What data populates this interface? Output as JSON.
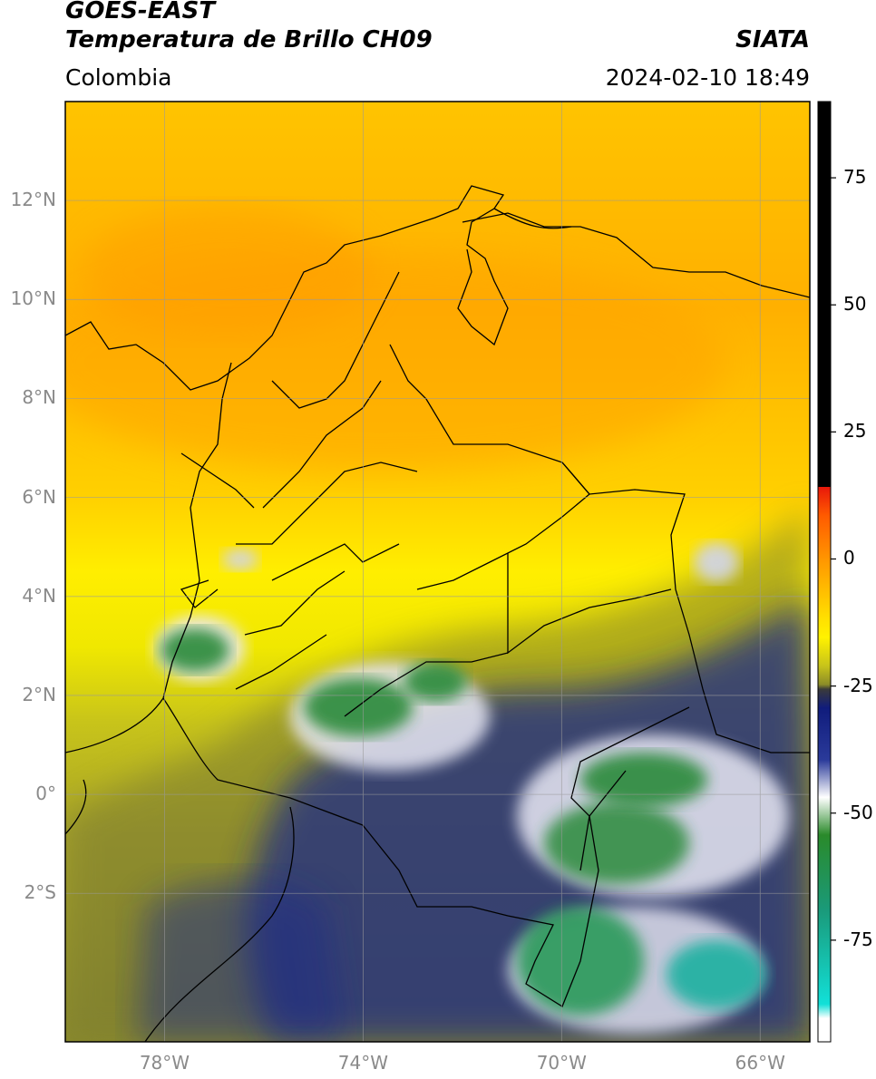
{
  "header": {
    "line1": "GOES-EAST",
    "line2": "Temperatura de Brillo CH09",
    "agency": "SIATA",
    "region": "Colombia",
    "datetime": "2024-02-10 18:49"
  },
  "map": {
    "lat_ticks": [
      "12°N",
      "10°N",
      "8°N",
      "6°N",
      "4°N",
      "2°N",
      "0°",
      "2°S"
    ],
    "lon_ticks": [
      "78°W",
      "74°W",
      "70°W",
      "66°W"
    ],
    "lon_range": [
      -80,
      -65
    ],
    "lat_range": [
      -5,
      14
    ]
  },
  "colorbar": {
    "ticks": [
      "75",
      "50",
      "25",
      "0",
      "-25",
      "-50",
      "-75"
    ],
    "range": [
      -95,
      90
    ],
    "colors": {
      "black": "#000000",
      "red": "#e8180a",
      "orange": "#ff9a00",
      "yellow": "#fff200",
      "olive": "#8c8c28",
      "navy": "#101c7c",
      "white": "#ffffff",
      "green": "#2a8a2a",
      "cyan": "#12e0d8"
    }
  }
}
